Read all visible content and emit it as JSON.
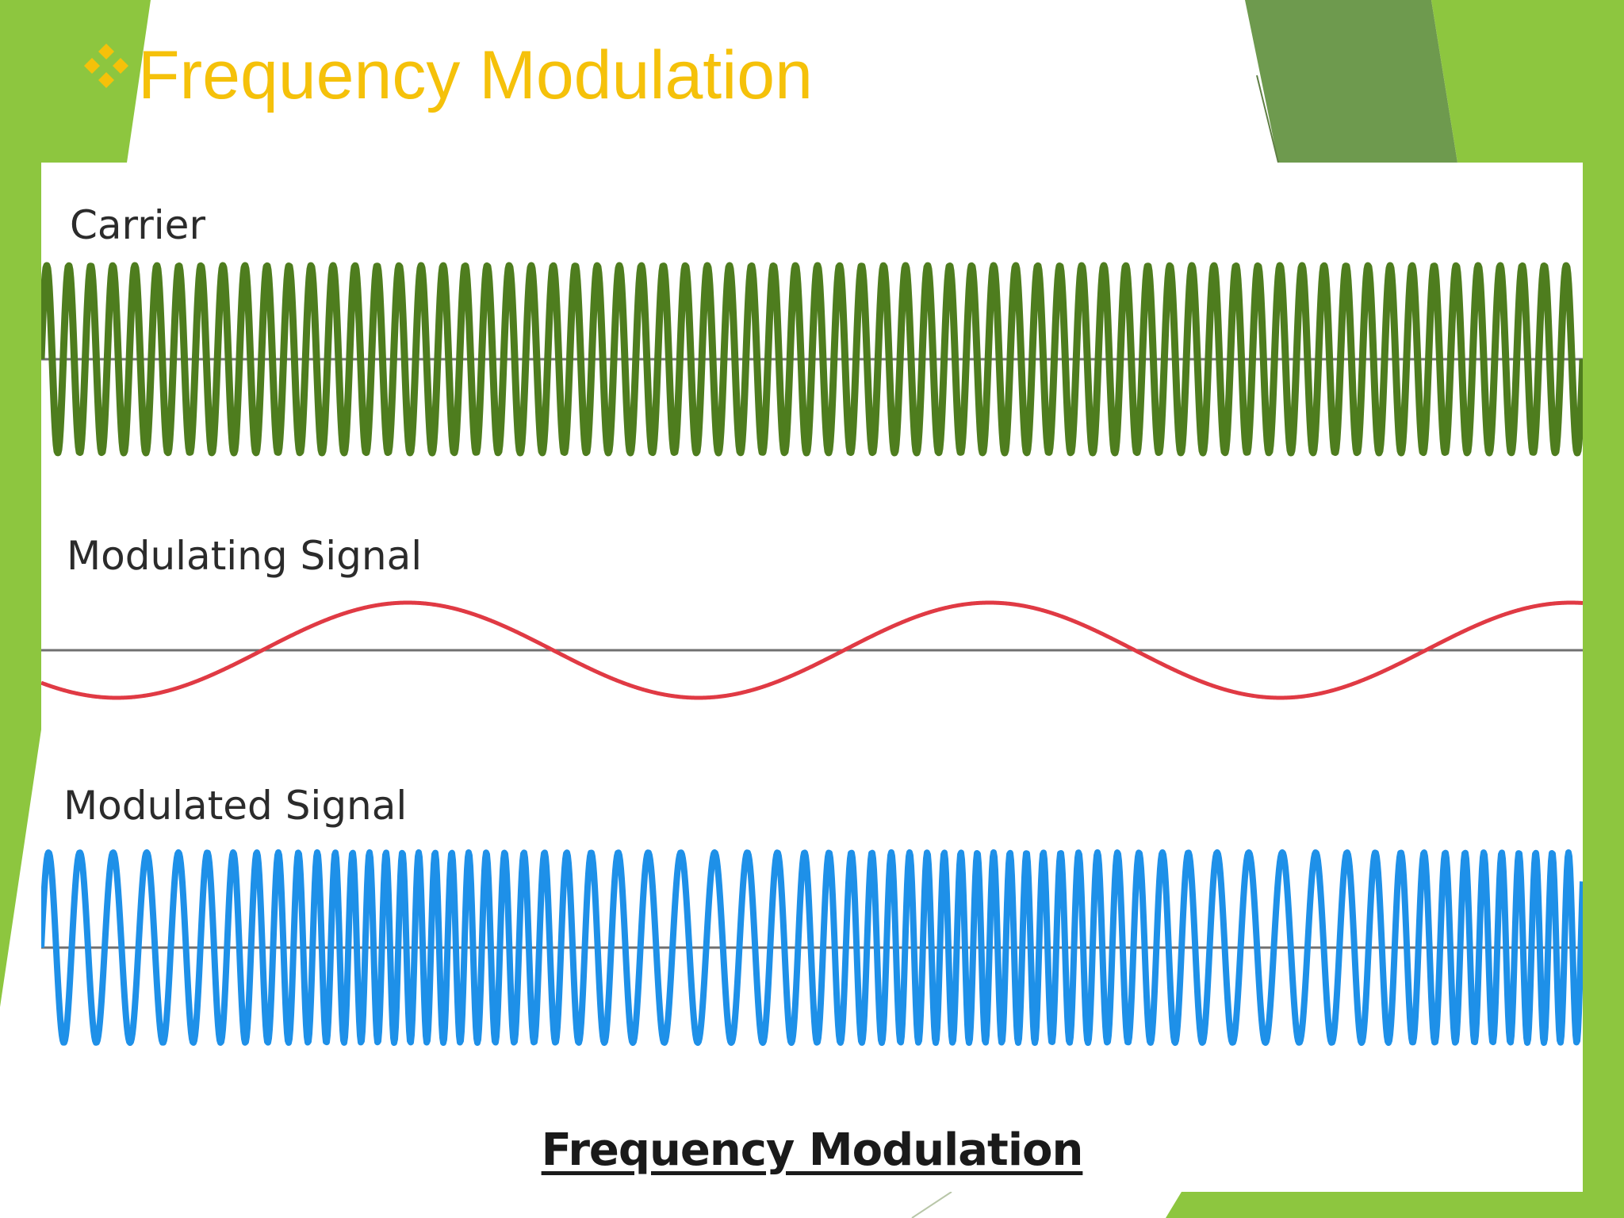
{
  "slide": {
    "title": "Frequency Modulation",
    "bullet_icon": "four-diamond-bullet-icon",
    "colors": {
      "title": "#F5C10A",
      "accent_green": "#8DC63F",
      "dark_green": "#6E9A4E",
      "carrier": "#4E7D1E",
      "modulating": "#E03A44",
      "modulated": "#1E90E8",
      "baseline": "#707070"
    }
  },
  "figure": {
    "caption": "Frequency Modulation",
    "panels": [
      {
        "id": "carrier",
        "label": "Carrier"
      },
      {
        "id": "modulating",
        "label": "Modulating Signal"
      },
      {
        "id": "modulated",
        "label": "Modulated Signal"
      }
    ]
  }
}
